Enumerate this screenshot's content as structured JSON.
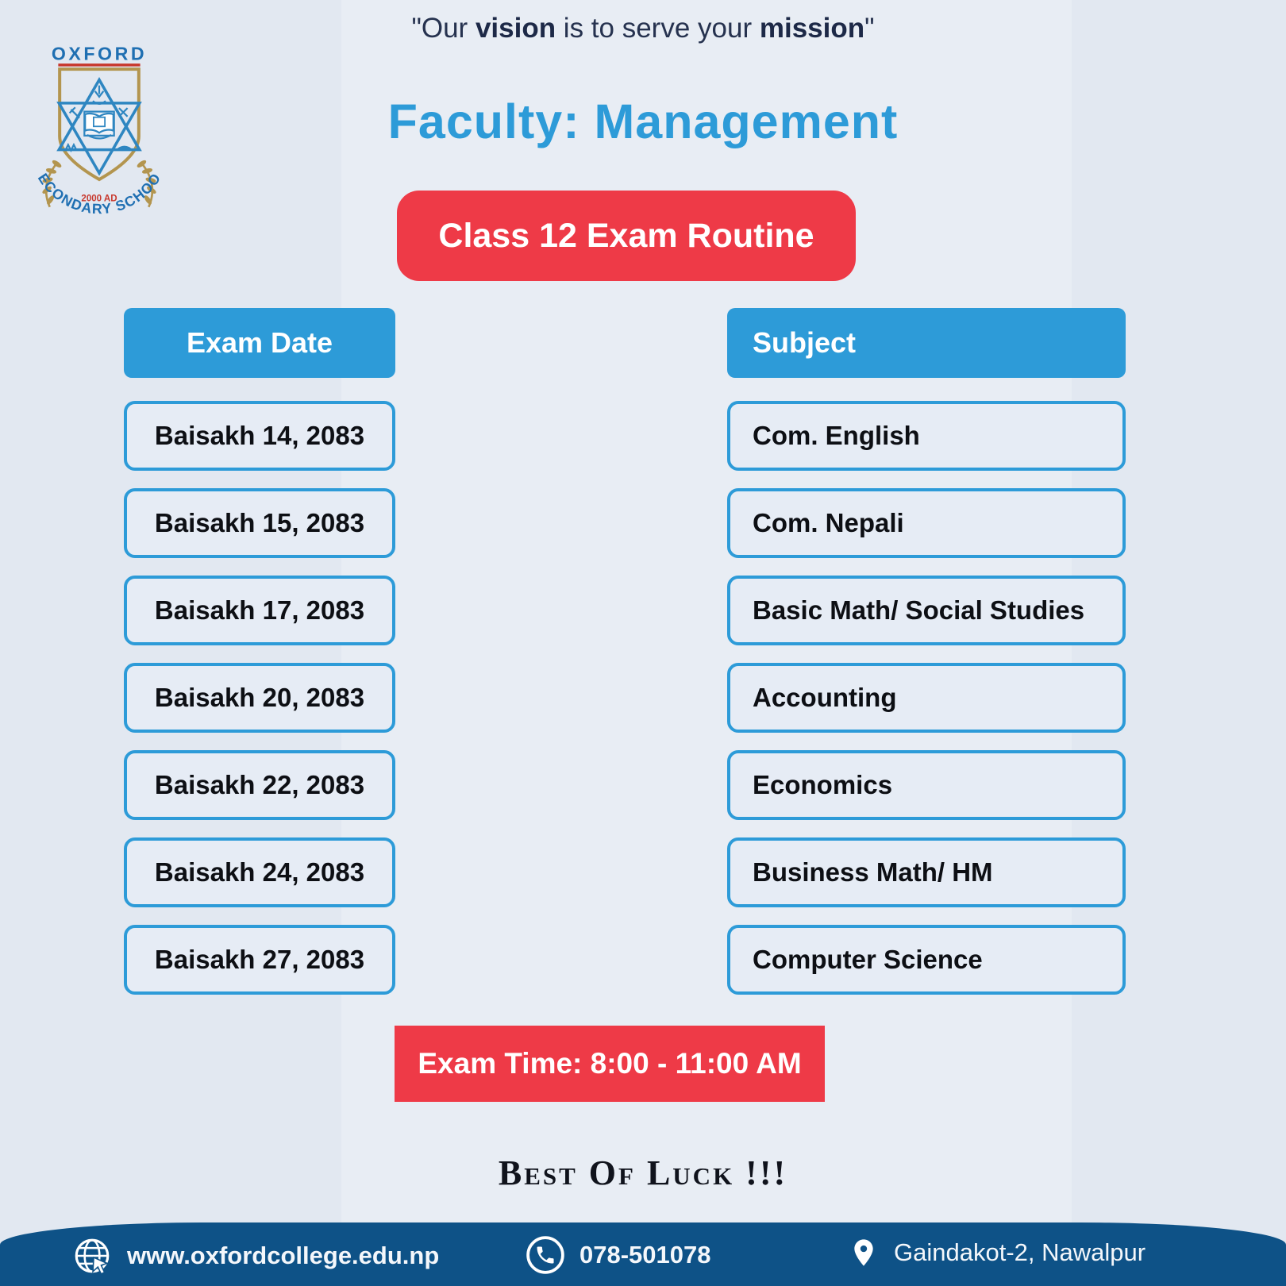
{
  "quote": {
    "q1": "\"Our ",
    "vision": "vision",
    "q2": " is to serve your ",
    "mission": "mission",
    "q3": "\""
  },
  "header": {
    "title": "Faculty: Management",
    "badge": "Class 12 Exam Routine"
  },
  "logo": {
    "name": "OXFORD",
    "year": "2000 AD",
    "school": "SECONDARY SCHOOL"
  },
  "table": {
    "date_header": "Exam Date",
    "subject_header": "Subject",
    "rows": [
      {
        "date": "Baisakh 14, 2083",
        "subject": "Com. English"
      },
      {
        "date": "Baisakh 15, 2083",
        "subject": "Com. Nepali"
      },
      {
        "date": "Baisakh 17, 2083",
        "subject": "Basic Math/ Social Studies"
      },
      {
        "date": "Baisakh 20, 2083",
        "subject": "Accounting"
      },
      {
        "date": "Baisakh 22, 2083",
        "subject": "Economics"
      },
      {
        "date": "Baisakh 24, 2083",
        "subject": "Business Math/ HM"
      },
      {
        "date": "Baisakh 27, 2083",
        "subject": "Computer Science"
      }
    ]
  },
  "notes": {
    "exam_time": "Exam Time: 8:00 - 11:00 AM",
    "best_of_luck": "Best Of Luck !!!"
  },
  "footer": {
    "website": "www.oxfordcollege.edu.np",
    "phone": "078-501078",
    "address": "Gaindakot-2, Nawalpur",
    "icons": [
      "globe-icon",
      "phone-icon",
      "location-pin-icon"
    ]
  },
  "colors": {
    "accent_blue": "#2d9bd8",
    "red": "#ee3a47",
    "footer_navy": "#0e5287",
    "quote_navy": "#26324f",
    "background": "#e2e8f1",
    "logo_gold": "#b3954f",
    "logo_blue": "#1f6fb2",
    "logo_red": "#c8392e"
  }
}
